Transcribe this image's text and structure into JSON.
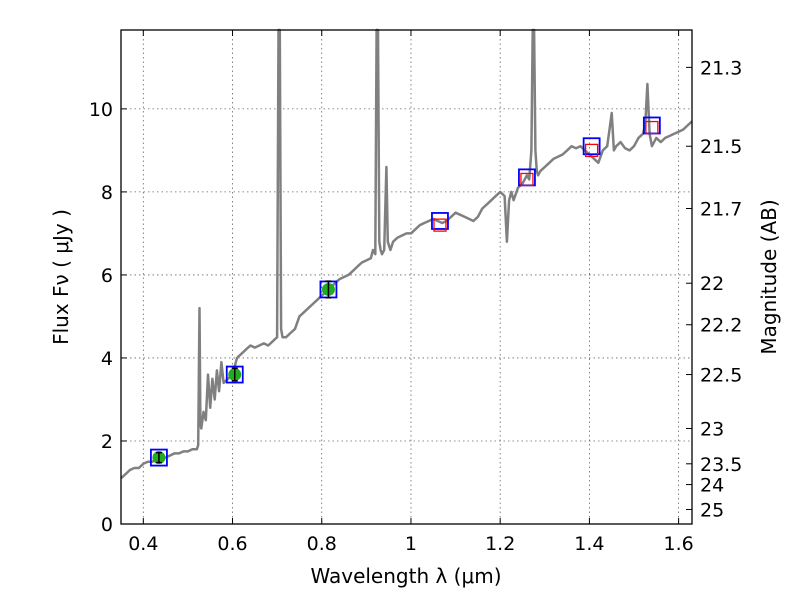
{
  "chart_data": {
    "type": "line",
    "xlabel": "Wavelength  λ (μm)",
    "ylabel": "Flux  Fν  ( μJy )",
    "y2label": "Magnitude (AB)",
    "xlim": [
      0.35,
      1.63
    ],
    "ylim": [
      0,
      11.9
    ],
    "grid": true,
    "x_ticks": [
      0.4,
      0.6,
      0.8,
      1.0,
      1.2,
      1.4,
      1.6
    ],
    "x_tick_labels": [
      "0.4",
      "0.6",
      "0.8",
      "1",
      "1.2",
      "1.4",
      "1.6"
    ],
    "y_ticks": [
      0,
      2,
      4,
      6,
      8,
      10
    ],
    "y_tick_labels": [
      "0",
      "2",
      "4",
      "6",
      "8",
      "10"
    ],
    "mag_ticks": [
      {
        "flux": 11.0,
        "label": "21.3"
      },
      {
        "flux": 9.1,
        "label": "21.5"
      },
      {
        "flux": 7.6,
        "label": "21.7"
      },
      {
        "flux": 5.8,
        "label": "22"
      },
      {
        "flux": 4.8,
        "label": "22.2"
      },
      {
        "flux": 3.6,
        "label": "22.5"
      },
      {
        "flux": 2.3,
        "label": "23"
      },
      {
        "flux": 1.45,
        "label": "23.5"
      },
      {
        "flux": 0.95,
        "label": "24"
      },
      {
        "flux": 0.35,
        "label": "25"
      }
    ],
    "series": [
      {
        "name": "model spectrum",
        "color": "#808080",
        "x": [
          0.35,
          0.36,
          0.37,
          0.38,
          0.39,
          0.4,
          0.41,
          0.42,
          0.43,
          0.44,
          0.45,
          0.46,
          0.47,
          0.48,
          0.49,
          0.5,
          0.51,
          0.52,
          0.523,
          0.526,
          0.528,
          0.53,
          0.535,
          0.54,
          0.545,
          0.55,
          0.555,
          0.56,
          0.565,
          0.57,
          0.575,
          0.58,
          0.59,
          0.6,
          0.61,
          0.62,
          0.63,
          0.64,
          0.65,
          0.66,
          0.67,
          0.68,
          0.69,
          0.7,
          0.703,
          0.706,
          0.709,
          0.712,
          0.72,
          0.73,
          0.74,
          0.75,
          0.76,
          0.77,
          0.78,
          0.79,
          0.8,
          0.81,
          0.82,
          0.83,
          0.84,
          0.85,
          0.86,
          0.87,
          0.88,
          0.89,
          0.9,
          0.91,
          0.915,
          0.92,
          0.923,
          0.926,
          0.929,
          0.932,
          0.935,
          0.94,
          0.945,
          0.948,
          0.951,
          0.954,
          0.96,
          0.97,
          0.98,
          0.99,
          1.0,
          1.01,
          1.02,
          1.03,
          1.04,
          1.05,
          1.06,
          1.07,
          1.08,
          1.09,
          1.1,
          1.11,
          1.12,
          1.13,
          1.14,
          1.15,
          1.16,
          1.17,
          1.18,
          1.19,
          1.2,
          1.21,
          1.215,
          1.22,
          1.225,
          1.23,
          1.24,
          1.25,
          1.26,
          1.265,
          1.27,
          1.273,
          1.276,
          1.279,
          1.282,
          1.285,
          1.29,
          1.3,
          1.31,
          1.32,
          1.33,
          1.34,
          1.35,
          1.36,
          1.37,
          1.38,
          1.39,
          1.4,
          1.41,
          1.42,
          1.43,
          1.44,
          1.445,
          1.45,
          1.455,
          1.46,
          1.47,
          1.48,
          1.49,
          1.5,
          1.51,
          1.52,
          1.525,
          1.53,
          1.535,
          1.54,
          1.55,
          1.56,
          1.57,
          1.58,
          1.59,
          1.6,
          1.61,
          1.62,
          1.63
        ],
        "y": [
          1.1,
          1.2,
          1.3,
          1.35,
          1.35,
          1.45,
          1.5,
          1.5,
          1.55,
          1.6,
          1.6,
          1.65,
          1.7,
          1.7,
          1.75,
          1.75,
          1.8,
          1.8,
          1.9,
          5.2,
          2.4,
          2.3,
          2.7,
          2.5,
          3.6,
          2.8,
          3.5,
          3.0,
          3.7,
          3.2,
          3.9,
          3.4,
          3.5,
          3.6,
          4.0,
          4.1,
          4.2,
          4.3,
          4.25,
          4.3,
          4.35,
          4.3,
          4.4,
          4.5,
          11.9,
          11.9,
          4.7,
          4.5,
          4.5,
          4.6,
          4.7,
          5.0,
          5.1,
          5.2,
          5.3,
          5.4,
          5.5,
          5.6,
          5.7,
          5.8,
          5.9,
          5.95,
          6.0,
          6.1,
          6.2,
          6.3,
          6.35,
          6.4,
          6.6,
          6.5,
          11.9,
          11.9,
          6.8,
          6.6,
          6.5,
          6.6,
          8.6,
          6.8,
          6.7,
          6.6,
          6.8,
          6.9,
          6.95,
          7.0,
          7.0,
          7.1,
          7.2,
          7.25,
          7.3,
          7.35,
          7.3,
          7.25,
          7.3,
          7.4,
          7.5,
          7.45,
          7.4,
          7.35,
          7.3,
          7.4,
          7.6,
          7.7,
          7.8,
          7.9,
          8.0,
          7.9,
          6.8,
          7.8,
          8.0,
          7.8,
          8.1,
          8.2,
          8.4,
          8.3,
          9.0,
          11.9,
          11.9,
          9.0,
          8.5,
          8.4,
          8.5,
          8.6,
          8.7,
          8.8,
          8.85,
          8.9,
          9.0,
          9.1,
          9.05,
          9.1,
          9.0,
          8.9,
          8.8,
          8.7,
          9.0,
          9.1,
          9.5,
          9.9,
          9.0,
          9.1,
          9.2,
          9.05,
          9.0,
          9.1,
          9.3,
          9.4,
          9.6,
          10.6,
          9.4,
          9.1,
          9.3,
          9.2,
          9.3,
          9.35,
          9.4,
          9.45,
          9.5,
          9.6,
          9.7
        ]
      }
    ],
    "observed_points": {
      "name": "photometry with error bars",
      "marker": "circle",
      "color": "#22aa22",
      "x": [
        0.435,
        0.605,
        0.815
      ],
      "y": [
        1.6,
        3.6,
        5.65
      ],
      "yerr": [
        0.12,
        0.15,
        0.2
      ]
    },
    "model_photometry": {
      "name": "model photometry",
      "marker": "square",
      "color": "#0000ff",
      "x": [
        0.435,
        0.605,
        0.815,
        1.065,
        1.26,
        1.405,
        1.54
      ],
      "y": [
        1.6,
        3.6,
        5.65,
        7.3,
        8.35,
        9.1,
        9.6
      ]
    },
    "upper_limits": {
      "name": "upper limits",
      "marker": "open square",
      "color": "#ff0000",
      "x": [
        1.065,
        1.26,
        1.405,
        1.54
      ],
      "y": [
        7.2,
        8.3,
        9.0,
        9.55
      ]
    }
  }
}
